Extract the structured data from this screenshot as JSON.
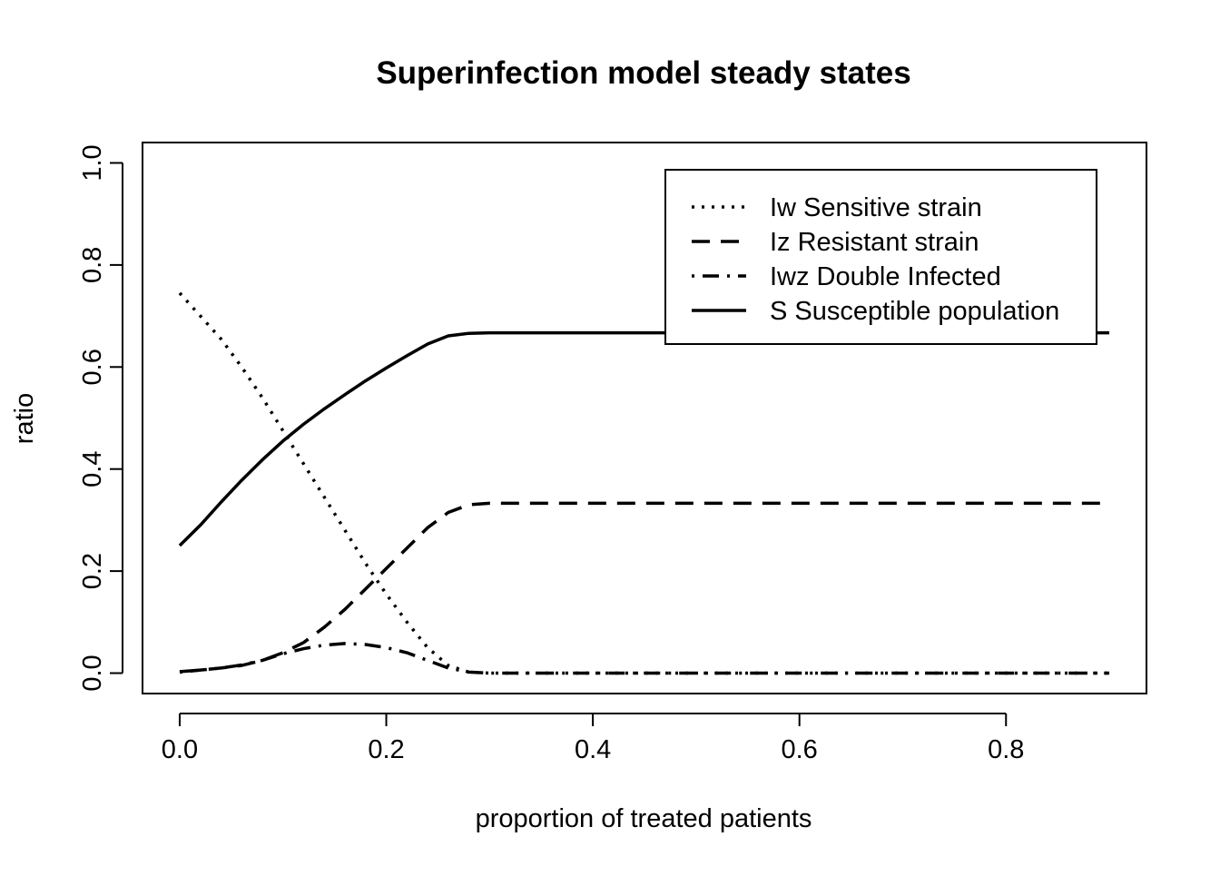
{
  "chart_data": {
    "type": "line",
    "title": "Superinfection model steady states",
    "xlabel": "proportion of treated patients",
    "ylabel": "ratio",
    "xlim": [
      -0.036,
      0.936
    ],
    "ylim": [
      -0.04,
      1.04
    ],
    "xticks": [
      0.0,
      0.2,
      0.4,
      0.6,
      0.8
    ],
    "xtick_labels": [
      "0.0",
      "0.2",
      "0.4",
      "0.6",
      "0.8"
    ],
    "yticks": [
      0.0,
      0.2,
      0.4,
      0.6,
      0.8,
      1.0
    ],
    "ytick_labels": [
      "0.0",
      "0.2",
      "0.4",
      "0.6",
      "0.8",
      "1.0"
    ],
    "grid": false,
    "legend_position": "top-right",
    "series": [
      {
        "name": "Iw Sensitive strain",
        "line_style": "dotted",
        "x": [
          0.0,
          0.02,
          0.04,
          0.06,
          0.08,
          0.1,
          0.12,
          0.14,
          0.16,
          0.18,
          0.2,
          0.22,
          0.24,
          0.26,
          0.28,
          0.3,
          0.4,
          0.5,
          0.6,
          0.7,
          0.8,
          0.9
        ],
        "y": [
          0.745,
          0.7,
          0.655,
          0.6,
          0.54,
          0.475,
          0.41,
          0.345,
          0.28,
          0.215,
          0.155,
          0.1,
          0.05,
          0.015,
          0.002,
          0.0,
          0.0,
          0.0,
          0.0,
          0.0,
          0.0,
          0.0
        ]
      },
      {
        "name": "Iz Resistant strain",
        "line_style": "dashed",
        "x": [
          0.0,
          0.02,
          0.04,
          0.06,
          0.08,
          0.1,
          0.12,
          0.14,
          0.16,
          0.18,
          0.2,
          0.22,
          0.24,
          0.26,
          0.28,
          0.3,
          0.4,
          0.5,
          0.6,
          0.7,
          0.8,
          0.9
        ],
        "y": [
          0.003,
          0.006,
          0.01,
          0.015,
          0.025,
          0.04,
          0.06,
          0.09,
          0.125,
          0.165,
          0.205,
          0.245,
          0.285,
          0.315,
          0.33,
          0.333,
          0.333,
          0.333,
          0.333,
          0.333,
          0.333,
          0.333
        ]
      },
      {
        "name": "Iwz Double Infected",
        "line_style": "dot-dash",
        "x": [
          0.0,
          0.02,
          0.04,
          0.06,
          0.08,
          0.1,
          0.12,
          0.14,
          0.16,
          0.18,
          0.2,
          0.22,
          0.24,
          0.26,
          0.28,
          0.3,
          0.4,
          0.5,
          0.6,
          0.7,
          0.8,
          0.9
        ],
        "y": [
          0.002,
          0.006,
          0.01,
          0.016,
          0.025,
          0.038,
          0.048,
          0.055,
          0.058,
          0.056,
          0.05,
          0.04,
          0.025,
          0.01,
          0.002,
          0.0,
          0.0,
          0.0,
          0.0,
          0.0,
          0.0,
          0.0
        ]
      },
      {
        "name": "S Susceptible population",
        "line_style": "solid",
        "x": [
          0.0,
          0.02,
          0.04,
          0.06,
          0.08,
          0.1,
          0.12,
          0.14,
          0.16,
          0.18,
          0.2,
          0.22,
          0.24,
          0.26,
          0.28,
          0.3,
          0.4,
          0.5,
          0.6,
          0.7,
          0.8,
          0.9
        ],
        "y": [
          0.25,
          0.29,
          0.335,
          0.378,
          0.418,
          0.455,
          0.488,
          0.518,
          0.546,
          0.573,
          0.598,
          0.622,
          0.645,
          0.661,
          0.666,
          0.667,
          0.667,
          0.667,
          0.667,
          0.667,
          0.667,
          0.667
        ]
      }
    ]
  }
}
